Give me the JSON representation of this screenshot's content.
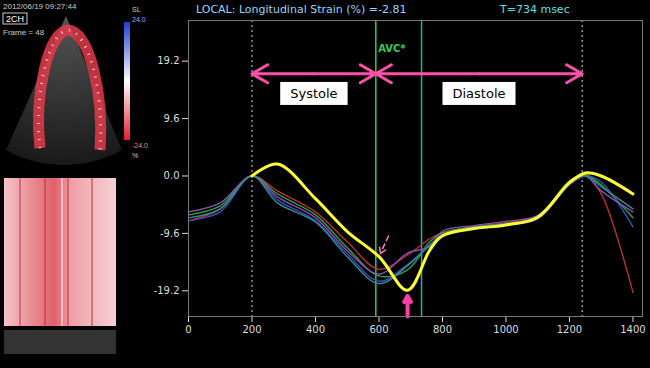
{
  "chart_data": {
    "type": "line",
    "header": {
      "left": "LOCAL: Longitudinal Strain (%) =-2.81",
      "right": "T=734 msec"
    },
    "x": [
      0,
      100,
      200,
      280,
      400,
      500,
      600,
      690,
      760,
      800,
      900,
      1000,
      1100,
      1200,
      1250,
      1300,
      1400
    ],
    "series": [
      {
        "color": "#b83232",
        "values": [
          -7.5,
          -5.5,
          0,
          -2.5,
          -6,
          -11,
          -15.6,
          -13.2,
          -10.5,
          -9.5,
          -8.5,
          -7.8,
          -6.8,
          -1.2,
          0,
          -3,
          -19.5
        ]
      },
      {
        "color": "#2e9e4a",
        "values": [
          -6.5,
          -5,
          0,
          -3,
          -6.5,
          -12,
          -16.7,
          -15.7,
          -11,
          -9.5,
          -8.5,
          -8,
          -7,
          -1,
          0.2,
          -1.5,
          -7
        ]
      },
      {
        "color": "#3b4fbf",
        "values": [
          -7.5,
          -6,
          0,
          -4,
          -7.5,
          -13,
          -17.6,
          -14.8,
          -11.5,
          -9.8,
          -8.8,
          -8.2,
          -7.2,
          -1.5,
          0,
          -1,
          -8.5
        ]
      },
      {
        "color": "#8a4fb0",
        "values": [
          -6,
          -4.5,
          0,
          -3.5,
          -7,
          -12.5,
          -16.4,
          -12.9,
          -11.8,
          -9.2,
          -8.3,
          -7.6,
          -6.6,
          -1.3,
          0,
          -2.5,
          -6
        ]
      },
      {
        "color": "#3a8c8c",
        "values": [
          -7,
          -5.5,
          0,
          -4.5,
          -7.7,
          -13.5,
          -18,
          -15,
          -11.6,
          -10,
          -8.6,
          -8,
          -7,
          -0.8,
          0,
          -1.8,
          -5.5
        ]
      },
      {
        "color": "#ffff33",
        "values": [
          null,
          null,
          0,
          2,
          -3.8,
          -9.3,
          -13.5,
          -19.1,
          -12.4,
          -10,
          -8.8,
          -8.2,
          -6.9,
          -1.1,
          0.5,
          0,
          -3
        ]
      }
    ],
    "xlim": [
      0,
      1430
    ],
    "ylim": [
      -23.5,
      26
    ],
    "xticks": [
      0,
      200,
      400,
      600,
      800,
      1000,
      1200,
      1400
    ],
    "yticks": [
      19.2,
      9.6,
      {
        "value": 0,
        "label": "0.0"
      },
      -9.6,
      -19.2
    ],
    "grid": false,
    "spans": [
      {
        "text": "Systole",
        "x": [
          200,
          590
        ],
        "color": "#ff4fa8"
      },
      {
        "text": "Diastole",
        "x": [
          590,
          1240
        ],
        "color": "#ff4fa8"
      }
    ],
    "vlines": [
      {
        "x": 200,
        "color": "#dddddd",
        "line_style": "dotted"
      },
      {
        "x": 590,
        "color": "#33cc55",
        "line_style": "solid",
        "label": "AVC*"
      },
      {
        "x": 734,
        "color": "#33aaaa",
        "line_style": "solid"
      },
      {
        "x": 1240,
        "color": "#dddddd",
        "line_style": "dotted"
      }
    ],
    "arrows": [
      {
        "x": 690,
        "y": -19.1,
        "color": "#ff3fa4",
        "line_style": "solid"
      },
      {
        "x": 600,
        "y": -13.5,
        "color": "#ff7fd0",
        "line_style": "dashed"
      }
    ]
  },
  "left_panel": {
    "timestamp": "2012/06/19 09:27:44",
    "view": "2CH",
    "frame": "Frame = 48",
    "colorbar": {
      "title": "SL",
      "ticks": [
        {
          "value": 24,
          "label": "24.0"
        },
        {
          "value": -24,
          "label": "-24.0"
        }
      ],
      "unit": "%"
    }
  }
}
